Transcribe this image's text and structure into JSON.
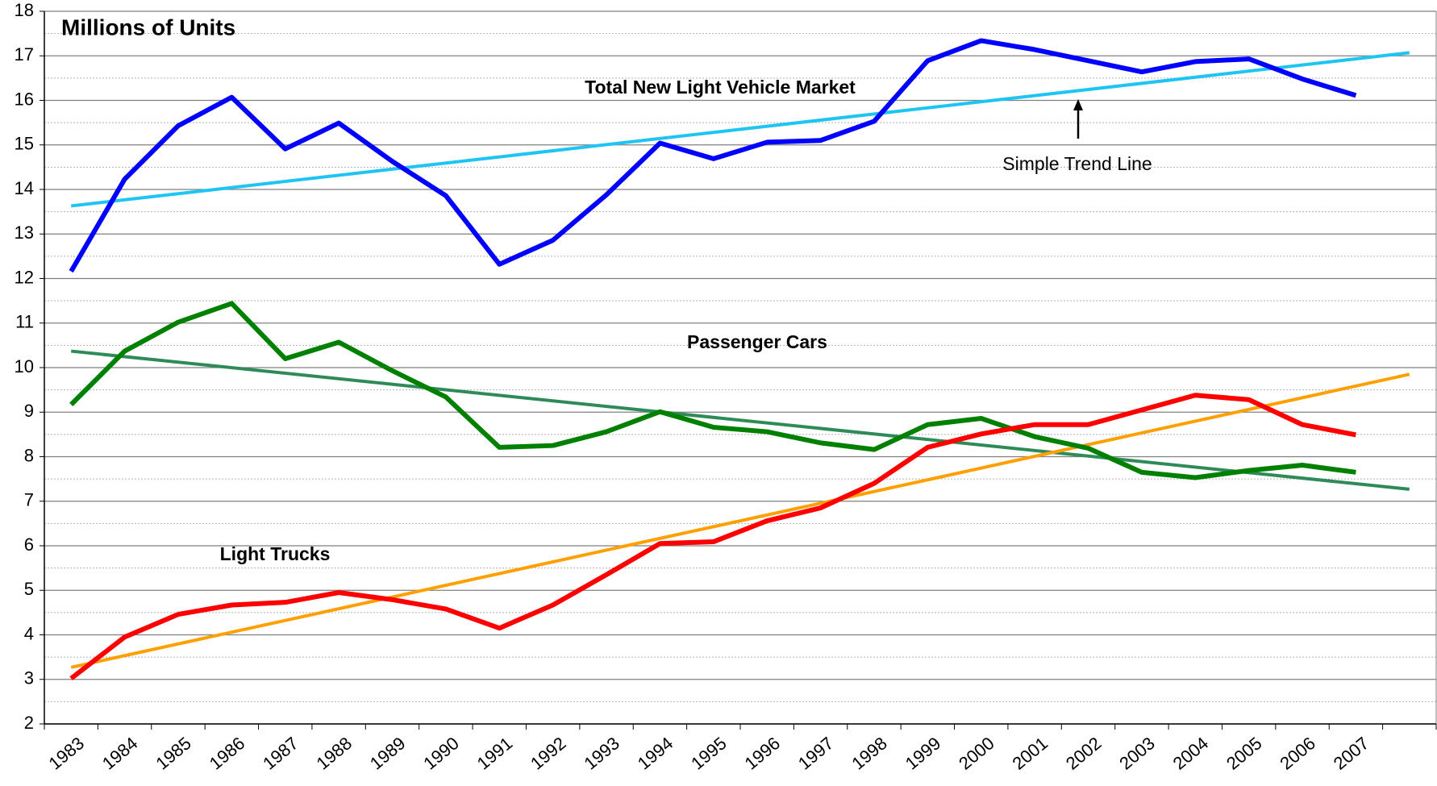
{
  "chart_data": {
    "type": "line",
    "y_label": "Millions of Units",
    "categories": [
      "1983",
      "1984",
      "1985",
      "1986",
      "1987",
      "1988",
      "1989",
      "1990",
      "1991",
      "1992",
      "1993",
      "1994",
      "1995",
      "1996",
      "1997",
      "1998",
      "1999",
      "2000",
      "2001",
      "2002",
      "2003",
      "2004",
      "2005",
      "2006",
      "2007",
      null
    ],
    "series": [
      {
        "name": "Total New Light Vehicle Market",
        "color": "#0000ff",
        "values": [
          12.16,
          14.23,
          15.43,
          16.07,
          14.91,
          15.49,
          14.63,
          13.86,
          12.32,
          12.86,
          13.88,
          15.04,
          14.69,
          15.06,
          15.1,
          15.53,
          16.89,
          17.34,
          17.14,
          16.89,
          16.64,
          16.87,
          16.93,
          16.48,
          16.11,
          null
        ]
      },
      {
        "name": "Passenger Cars",
        "color": "#008000",
        "values": [
          9.17,
          10.37,
          11.02,
          11.44,
          10.2,
          10.57,
          9.93,
          9.34,
          8.21,
          8.25,
          8.56,
          9.01,
          8.66,
          8.56,
          8.31,
          8.16,
          8.72,
          8.86,
          8.45,
          8.19,
          7.65,
          7.53,
          7.69,
          7.81,
          7.65,
          null
        ]
      },
      {
        "name": "Light Trucks",
        "color": "#ff0000",
        "values": [
          3.02,
          3.95,
          4.46,
          4.67,
          4.73,
          4.95,
          4.79,
          4.58,
          4.15,
          4.67,
          5.35,
          6.05,
          6.09,
          6.56,
          6.85,
          7.4,
          8.21,
          8.51,
          8.72,
          8.72,
          9.05,
          9.38,
          9.28,
          8.72,
          8.49,
          null
        ]
      }
    ],
    "trend_lines": [
      {
        "color": "#1ec4f2",
        "values": [
          13.63,
          17.07
        ]
      },
      {
        "color": "#2e8b57",
        "values": [
          10.37,
          7.27
        ]
      },
      {
        "color": "#ffa000",
        "values": [
          3.27,
          9.85
        ]
      }
    ],
    "trend_annotation": "Simple Trend Line",
    "ylim": [
      2,
      18
    ],
    "yticks": [
      2,
      3,
      4,
      5,
      6,
      7,
      8,
      9,
      10,
      11,
      12,
      13,
      14,
      15,
      16,
      17,
      18
    ],
    "grid": true
  }
}
